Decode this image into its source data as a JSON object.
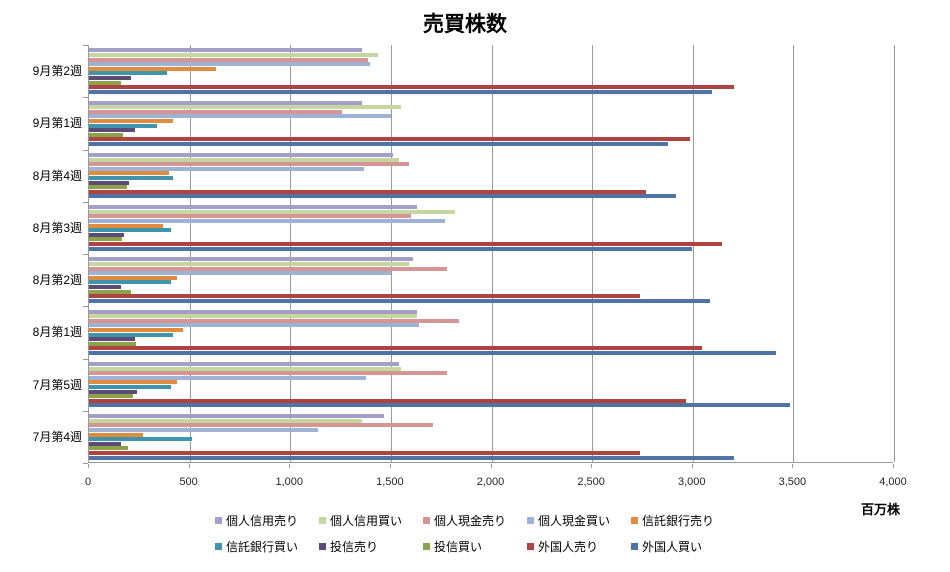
{
  "title": "売買株数",
  "unit_label": "百万株",
  "chart_data": {
    "type": "bar",
    "orientation": "horizontal",
    "title": "売買株数",
    "xlabel": "百万株",
    "xlim": [
      0,
      4000
    ],
    "x_ticks": [
      "0",
      "500",
      "1,000",
      "1,500",
      "2,000",
      "2,500",
      "3,000",
      "3,500",
      "4,000"
    ],
    "x_tick_values": [
      0,
      500,
      1000,
      1500,
      2000,
      2500,
      3000,
      3500,
      4000
    ],
    "grid": true,
    "legend_position": "bottom",
    "categories": [
      "9月第2週",
      "9月第1週",
      "8月第4週",
      "8月第3週",
      "8月第2週",
      "8月第1週",
      "7月第5週",
      "7月第4週"
    ],
    "series": [
      {
        "name": "個人信用売り",
        "color": "#a29fc9",
        "values": [
          1360,
          1360,
          1510,
          1630,
          1610,
          1630,
          1540,
          1470
        ]
      },
      {
        "name": "個人信用買い",
        "color": "#c6d6a0",
        "values": [
          1440,
          1550,
          1540,
          1820,
          1590,
          1630,
          1550,
          1360
        ]
      },
      {
        "name": "個人現金売り",
        "color": "#d49594",
        "values": [
          1390,
          1260,
          1590,
          1600,
          1780,
          1840,
          1780,
          1710
        ]
      },
      {
        "name": "個人現金買い",
        "color": "#9db2d4",
        "values": [
          1400,
          1500,
          1370,
          1770,
          1500,
          1640,
          1380,
          1140
        ]
      },
      {
        "name": "信託銀行売り",
        "color": "#e08b3e",
        "values": [
          630,
          420,
          400,
          370,
          440,
          470,
          440,
          270
        ]
      },
      {
        "name": "信託銀行買い",
        "color": "#3e96ae",
        "values": [
          390,
          340,
          420,
          410,
          410,
          420,
          410,
          510
        ]
      },
      {
        "name": "投信売り",
        "color": "#5c4b77",
        "values": [
          210,
          230,
          200,
          175,
          160,
          230,
          240,
          160
        ]
      },
      {
        "name": "投信買い",
        "color": "#8ca349",
        "values": [
          160,
          170,
          190,
          165,
          210,
          235,
          220,
          195
        ]
      },
      {
        "name": "外国人売り",
        "color": "#af4340",
        "values": [
          3210,
          2990,
          2770,
          3150,
          2740,
          3050,
          2970,
          2740
        ]
      },
      {
        "name": "外国人買い",
        "color": "#4e74a5",
        "values": [
          3100,
          2880,
          2920,
          3000,
          3090,
          3420,
          3490,
          3210
        ]
      }
    ]
  },
  "colors": {
    "gridline": "#9a9a9a",
    "axis": "#9a9a9a",
    "tick_text": "#262626",
    "background": "#ffffff"
  }
}
